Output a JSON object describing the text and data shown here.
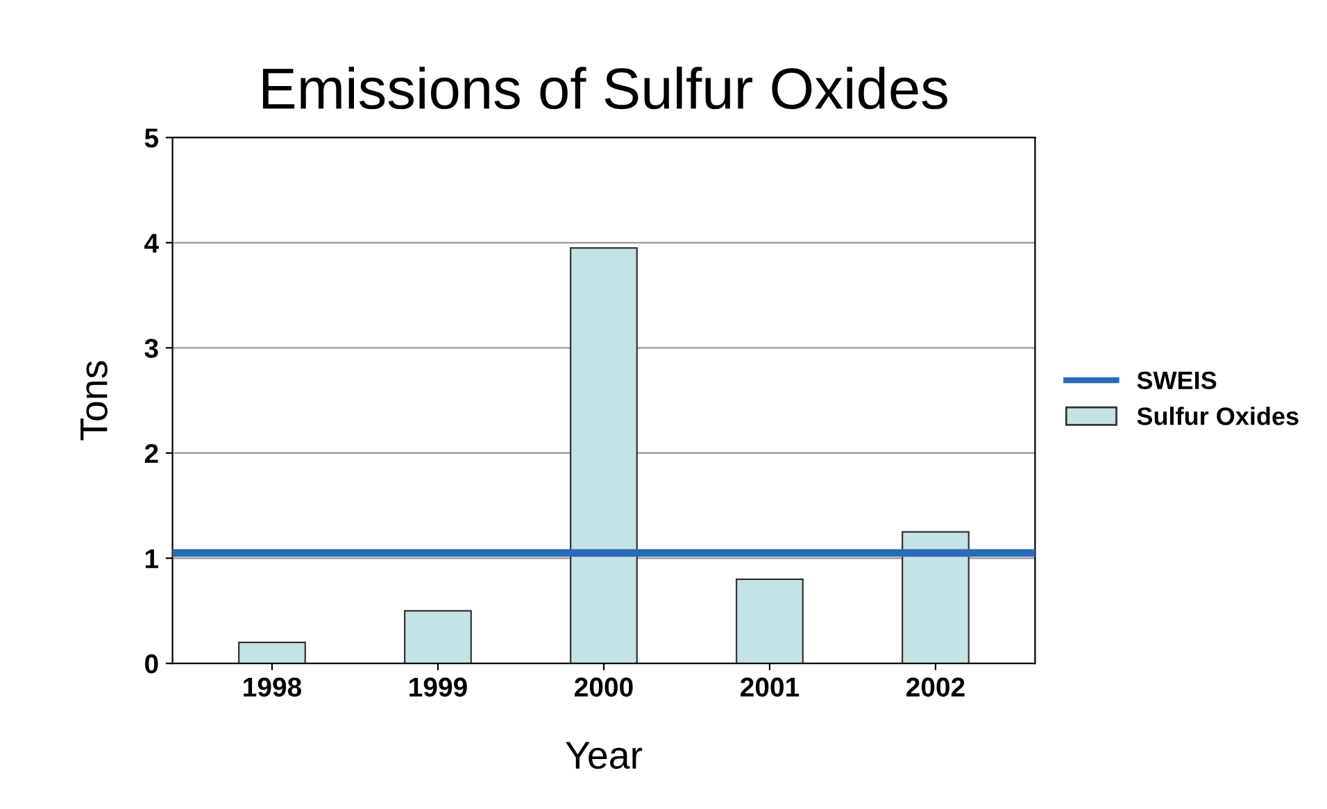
{
  "chart_data": {
    "type": "bar",
    "title": "Emissions of Sulfur Oxides",
    "xlabel": "Year",
    "ylabel": "Tons",
    "categories": [
      "1998",
      "1999",
      "2000",
      "2001",
      "2002"
    ],
    "series": [
      {
        "name": "Sulfur Oxides",
        "color": "#c4e3e6",
        "values": [
          0.2,
          0.5,
          3.95,
          0.8,
          1.25
        ]
      }
    ],
    "ref_lines": [
      {
        "axis": "y",
        "value": 1.05,
        "label": "SWEIS",
        "color": "#2a6bb8",
        "line_style": "solid"
      }
    ],
    "ylim": [
      0,
      5
    ],
    "yticks": [
      0,
      1,
      2,
      3,
      4,
      5
    ],
    "grid": "y",
    "legend": "right"
  }
}
